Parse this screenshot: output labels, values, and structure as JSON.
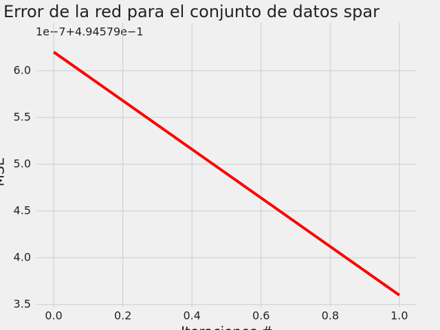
{
  "chart_data": {
    "type": "line",
    "title": "Error de la red para el conjunto de datos spar",
    "x_label": "Iteraciones #",
    "y_label": "MSE",
    "y_offset_text": "1e−7+4.94579e−1",
    "x": [
      0,
      1
    ],
    "series": [
      {
        "name": "MSE",
        "color": "#ff0000",
        "values": [
          6.2,
          3.6
        ]
      }
    ],
    "xlim": [
      -0.05,
      1.05
    ],
    "xticks": [
      {
        "value": 0,
        "label": "0.0"
      },
      {
        "value": 0.2,
        "label": "0.2"
      },
      {
        "value": 0.4,
        "label": "0.4"
      },
      {
        "value": 0.6,
        "label": "0.6"
      },
      {
        "value": 0.8,
        "label": "0.8"
      },
      {
        "value": 1,
        "label": "1.0"
      }
    ],
    "ylim": [
      3.47,
      6.33
    ],
    "yticks": [
      {
        "value": 3.5,
        "label": "3.5"
      },
      {
        "value": 4,
        "label": "4.0"
      },
      {
        "value": 4.5,
        "label": "4.5"
      },
      {
        "value": 5,
        "label": "5.0"
      },
      {
        "value": 5.5,
        "label": "5.5"
      },
      {
        "value": 6,
        "label": "6.0"
      }
    ],
    "grid": true
  }
}
